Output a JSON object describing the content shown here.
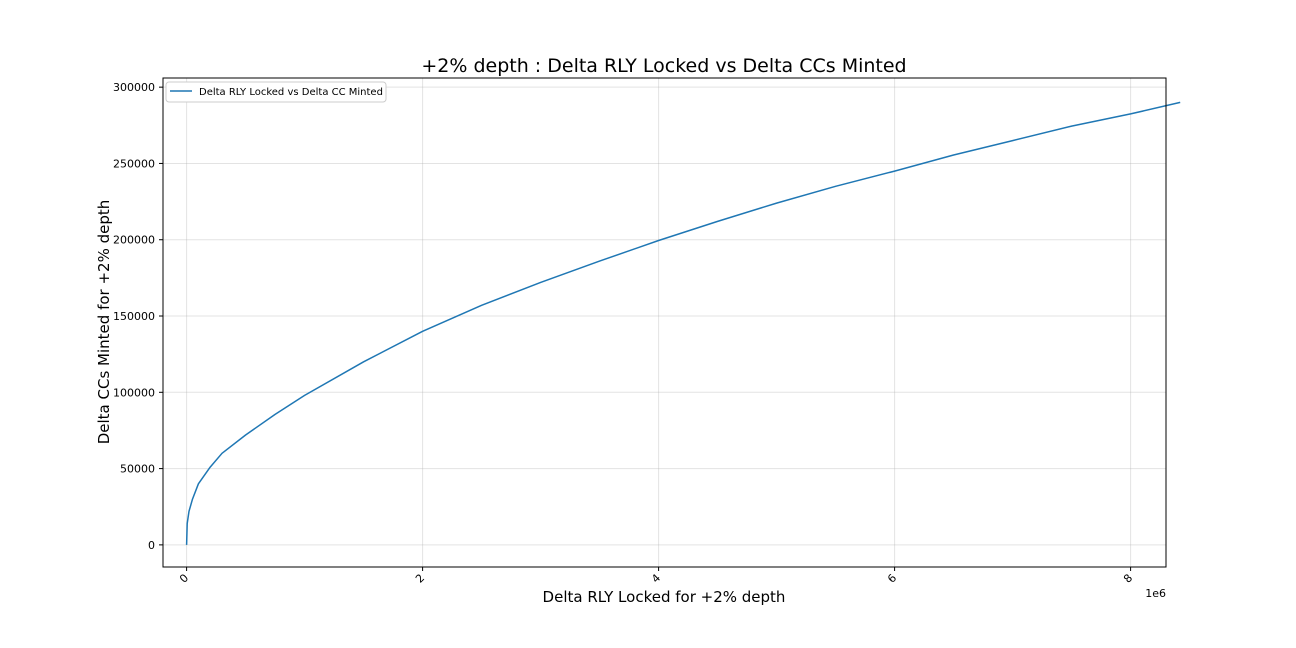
{
  "chart_data": {
    "type": "line",
    "title": "+2% depth : Delta RLY Locked vs Delta CCs Minted",
    "xlabel": "Delta RLY Locked for +2% depth",
    "ylabel": "Delta CCs Minted for +2% depth",
    "x_offset_label": "1e6",
    "xlim": [
      -0.2,
      8.3
    ],
    "ylim": [
      -14500,
      306000
    ],
    "x_scale_note": "x values in units of 1e6",
    "xticks": [
      0,
      2,
      4,
      6,
      8
    ],
    "xtick_labels": [
      "0",
      "2",
      "4",
      "6",
      "8"
    ],
    "yticks": [
      0,
      50000,
      100000,
      150000,
      200000,
      250000,
      300000
    ],
    "ytick_labels": [
      "0",
      "50000",
      "100000",
      "150000",
      "200000",
      "250000",
      "300000"
    ],
    "grid": true,
    "legend_position": "top-left",
    "series": [
      {
        "name": "Delta RLY Locked vs Delta CC Minted",
        "color": "#1f77b4",
        "x": [
          0,
          0.005,
          0.02,
          0.05,
          0.1,
          0.2,
          0.3,
          0.5,
          0.75,
          1.0,
          1.5,
          2.0,
          2.5,
          3.0,
          3.5,
          4.0,
          4.5,
          5.0,
          5.5,
          6.0,
          6.5,
          7.0,
          7.5,
          8.0,
          8.42
        ],
        "y": [
          0,
          14000,
          22000,
          30000,
          40000,
          51000,
          60000,
          72000,
          85500,
          98000,
          120000,
          140000,
          157000,
          172000,
          186000,
          199500,
          212000,
          224000,
          235000,
          245000,
          255500,
          265000,
          274500,
          282500,
          290000
        ]
      }
    ]
  }
}
